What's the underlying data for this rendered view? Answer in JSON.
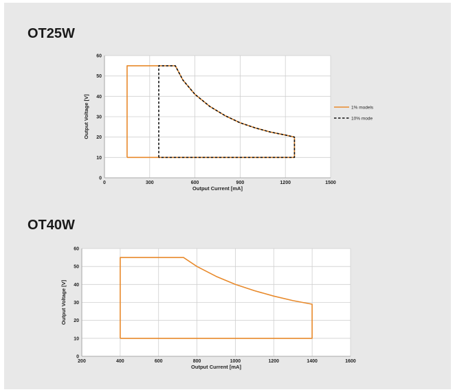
{
  "chart_data": [
    {
      "type": "line",
      "title": "OT25W",
      "xlabel": "Output Current [mA]",
      "ylabel": "Output Voltage [V]",
      "xlim": [
        0,
        1500
      ],
      "ylim": [
        0,
        60
      ],
      "xticks": [
        0,
        300,
        600,
        900,
        1200,
        1500
      ],
      "yticks": [
        0,
        10,
        20,
        30,
        40,
        50,
        60
      ],
      "grid": true,
      "legend": "right",
      "series": [
        {
          "name": "1% models",
          "color": "#e8892a",
          "style": "solid",
          "x": [
            150,
            150,
            470,
            520,
            600,
            700,
            800,
            900,
            1000,
            1100,
            1200,
            1260,
            1260,
            150
          ],
          "y": [
            10,
            55,
            55,
            48,
            41,
            35,
            30.5,
            27,
            24.5,
            22.5,
            21,
            20,
            10,
            10
          ]
        },
        {
          "name": "10% mode",
          "color": "#111111",
          "style": "dashed",
          "x": [
            360,
            360,
            470,
            520,
            600,
            700,
            800,
            900,
            1000,
            1100,
            1200,
            1260,
            1260,
            360
          ],
          "y": [
            10,
            55,
            55,
            48,
            41,
            35,
            30.5,
            27,
            24.5,
            22.5,
            21,
            20,
            10,
            10
          ]
        }
      ]
    },
    {
      "type": "line",
      "title": "OT40W",
      "xlabel": "Output Current [mA]",
      "ylabel": "Output Voltage [V]",
      "xlim": [
        200,
        1600
      ],
      "ylim": [
        0,
        60
      ],
      "xticks": [
        200,
        400,
        600,
        800,
        1000,
        1200,
        1400,
        1600
      ],
      "yticks": [
        0,
        10,
        20,
        30,
        40,
        50,
        60
      ],
      "grid": true,
      "legend": "none",
      "series": [
        {
          "color": "#e8892a",
          "style": "solid",
          "x": [
            400,
            400,
            730,
            800,
            900,
            1000,
            1100,
            1200,
            1300,
            1400,
            1400,
            400
          ],
          "y": [
            10,
            55,
            55,
            50,
            44.5,
            40,
            36.5,
            33.5,
            31,
            29,
            10,
            10
          ]
        }
      ]
    }
  ]
}
